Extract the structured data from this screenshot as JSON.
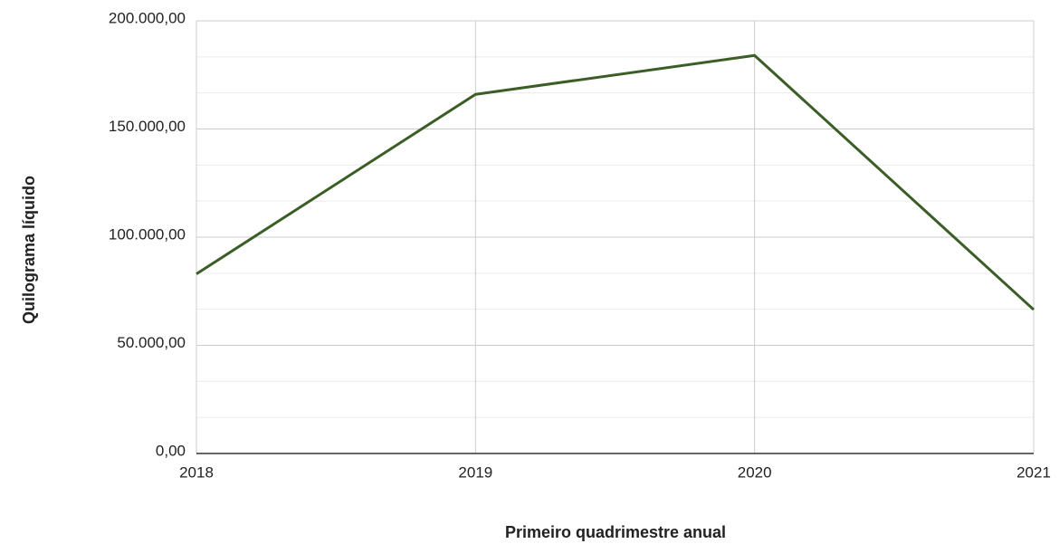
{
  "chart_data": {
    "type": "line",
    "x_label": "Primeiro quadrimestre anual",
    "y_label": "Quilograma líquido",
    "x": [
      2018,
      2019,
      2020,
      2021
    ],
    "series": [
      {
        "name": "Quilograma líquido",
        "color": "#3b5e26",
        "values": [
          83000,
          166000,
          184000,
          66500
        ]
      }
    ],
    "xlim": [
      2018,
      2021
    ],
    "xticks": [
      2018,
      2019,
      2020,
      2021
    ],
    "ylim": [
      0,
      200000
    ],
    "yticks": [
      {
        "value": 0,
        "label": "0,00"
      },
      {
        "value": 50000,
        "label": "50.000,00"
      },
      {
        "value": 100000,
        "label": "100.000,00"
      },
      {
        "value": 150000,
        "label": "150.000,00"
      },
      {
        "value": 200000,
        "label": "200.000,00"
      }
    ],
    "grid": true,
    "minor_grid": true,
    "legend": false
  }
}
